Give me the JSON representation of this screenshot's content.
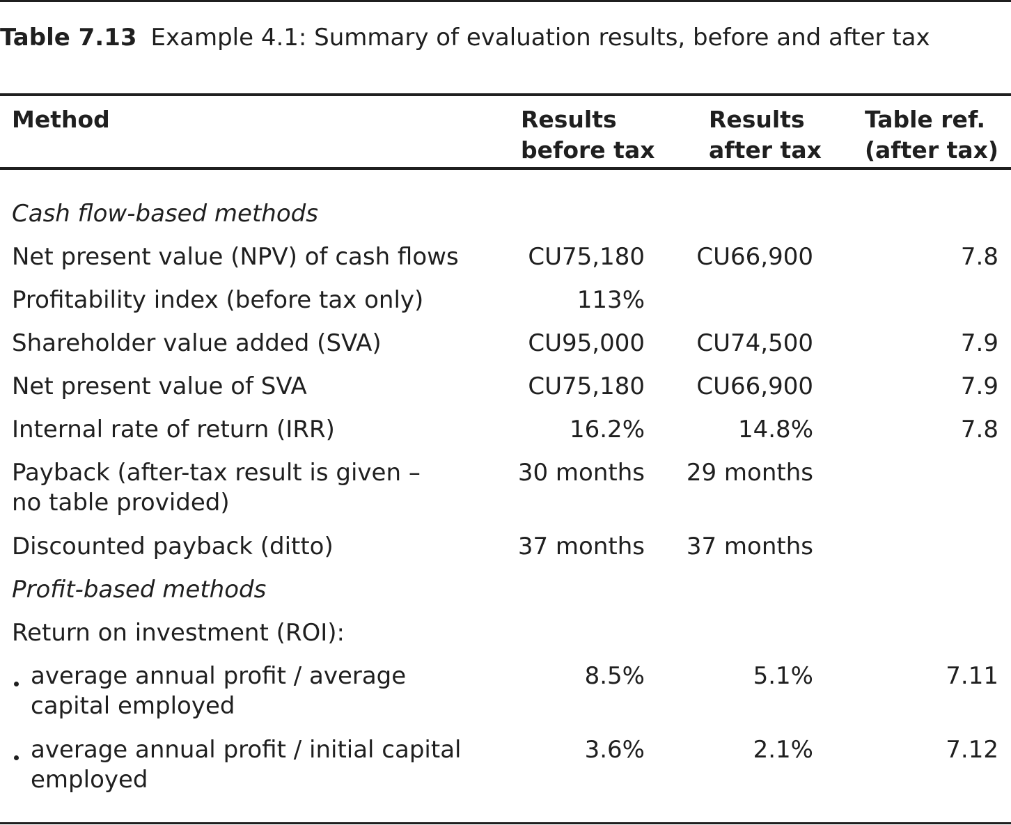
{
  "caption": {
    "number": "Table 7.13",
    "text": "Example 4.1: Summary of evaluation results, before and after tax"
  },
  "headers": {
    "method": "Method",
    "before_tax": [
      "Results",
      "before tax"
    ],
    "after_tax": [
      "Results",
      "after tax"
    ],
    "table_ref": [
      "Table ref.",
      "(after tax)"
    ]
  },
  "sections": {
    "cash_flow": "Cash flow-based methods",
    "profit": "Profit-based methods"
  },
  "rows": {
    "npv": {
      "label": "Net present value (NPV) of cash flows",
      "before": "CU75,180",
      "after": "CU66,900",
      "ref": "7.8"
    },
    "pi": {
      "label": "Profitability index (before tax only)",
      "before": "113%",
      "after": "",
      "ref": ""
    },
    "sva": {
      "label": "Shareholder value added (SVA)",
      "before": "CU95,000",
      "after": "CU74,500",
      "ref": "7.9"
    },
    "npv_sva": {
      "label": "Net present value of SVA",
      "before": "CU75,180",
      "after": "CU66,900",
      "ref": "7.9"
    },
    "irr": {
      "label": "Internal rate of return (IRR)",
      "before": "16.2%",
      "after": "14.8%",
      "ref": "7.8"
    },
    "payback": {
      "label": [
        "Payback (after-tax result is given –",
        "no table provided)"
      ],
      "before": "30 months",
      "after": "29 months",
      "ref": ""
    },
    "disc_payback": {
      "label": "Discounted payback (ditto)",
      "before": "37 months",
      "after": "37 months",
      "ref": ""
    },
    "roi": {
      "label": "Return on investment (ROI):",
      "before": "",
      "after": "",
      "ref": ""
    },
    "roi_avg": {
      "label": [
        "average annual profit / average",
        "capital employed"
      ],
      "before": "8.5%",
      "after": "5.1%",
      "ref": "7.11"
    },
    "roi_init": {
      "label": [
        "average annual profit / initial capital",
        "employed"
      ],
      "before": "3.6%",
      "after": "2.1%",
      "ref": "7.12"
    }
  }
}
